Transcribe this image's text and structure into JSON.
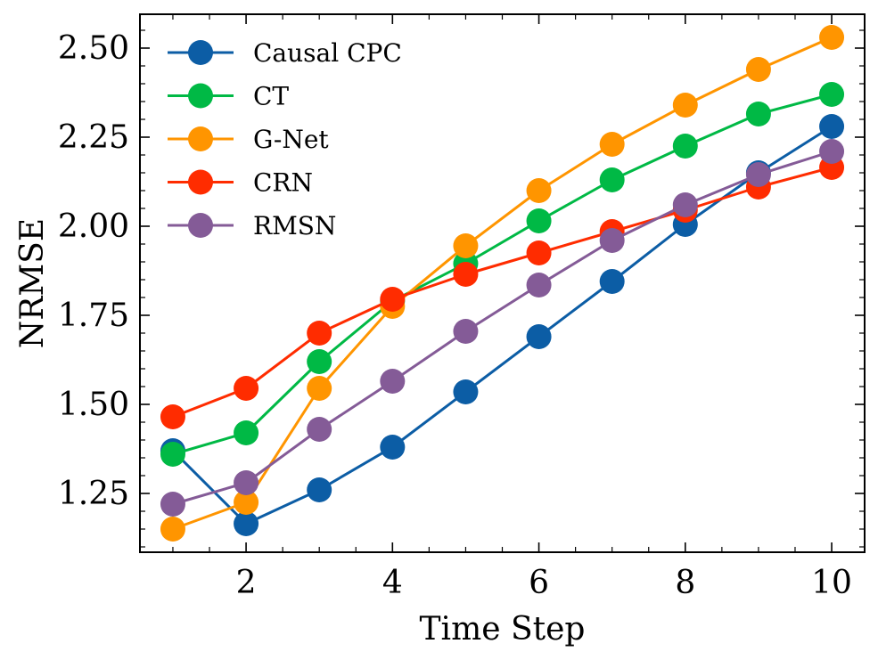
{
  "chart_data": {
    "type": "line",
    "title": "",
    "xlabel": "Time Step",
    "ylabel": "NRMSE",
    "x": [
      1,
      2,
      3,
      4,
      5,
      6,
      7,
      8,
      9,
      10
    ],
    "xlim": [
      0.55,
      10.45
    ],
    "ylim": [
      1.085,
      2.595
    ],
    "xticks": [
      2,
      4,
      6,
      8,
      10
    ],
    "xtick_labels": [
      "2",
      "4",
      "6",
      "8",
      "10"
    ],
    "yticks": [
      1.25,
      1.5,
      1.75,
      2.0,
      2.25,
      2.5
    ],
    "ytick_labels": [
      "1.25",
      "1.50",
      "1.75",
      "2.00",
      "2.25",
      "2.50"
    ],
    "grid": false,
    "legend_position": "top-left",
    "series": [
      {
        "name": "Causal CPC",
        "color": "#0c5da5",
        "values": [
          1.37,
          1.165,
          1.26,
          1.38,
          1.535,
          1.69,
          1.845,
          2.005,
          2.15,
          2.28
        ]
      },
      {
        "name": "CT",
        "color": "#00b945",
        "values": [
          1.36,
          1.42,
          1.62,
          1.79,
          1.895,
          2.015,
          2.13,
          2.225,
          2.315,
          2.37
        ]
      },
      {
        "name": "G-Net",
        "color": "#ff9500",
        "values": [
          1.15,
          1.225,
          1.545,
          1.775,
          1.945,
          2.1,
          2.23,
          2.34,
          2.44,
          2.53
        ]
      },
      {
        "name": "CRN",
        "color": "#ff2c00",
        "values": [
          1.465,
          1.545,
          1.7,
          1.795,
          1.865,
          1.925,
          1.985,
          2.045,
          2.11,
          2.165
        ]
      },
      {
        "name": "RMSN",
        "color": "#845b97",
        "values": [
          1.22,
          1.28,
          1.43,
          1.565,
          1.705,
          1.835,
          1.96,
          2.06,
          2.145,
          2.21
        ]
      }
    ]
  }
}
